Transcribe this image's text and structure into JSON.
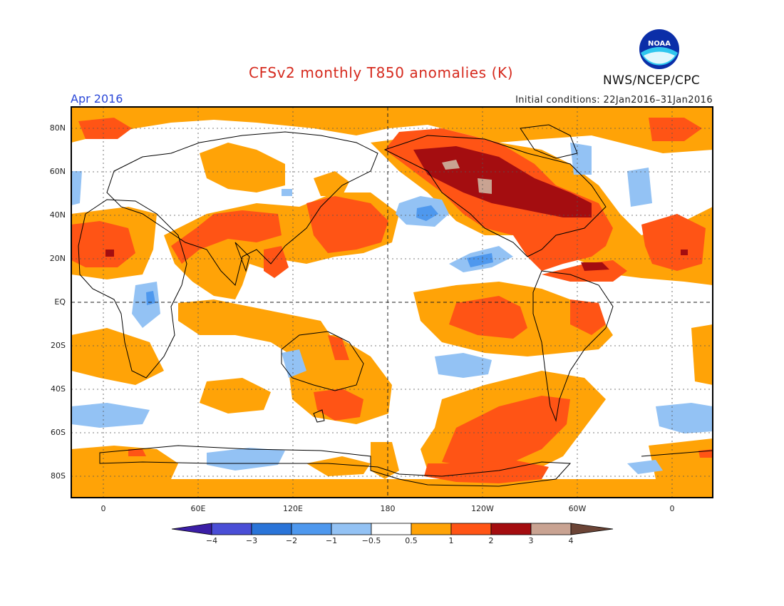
{
  "header": {
    "title": "CFSv2 monthly T850 anomalies (K)",
    "period": "Apr 2016",
    "initial_conditions": "Initial conditions: 22Jan2016–31Jan2016",
    "agency": "NWS/NCEP/CPC",
    "logo_text": "NOAA"
  },
  "map": {
    "lat_labels": [
      "80N",
      "60N",
      "40N",
      "20N",
      "EQ",
      "20S",
      "40S",
      "60S",
      "80S"
    ],
    "lon_labels": [
      "0",
      "60E",
      "120E",
      "180",
      "120W",
      "60W",
      "0"
    ]
  },
  "colorbar": {
    "labels": [
      "−4",
      "−3",
      "−2",
      "−1",
      "−0.5",
      "0.5",
      "1",
      "2",
      "3",
      "4"
    ],
    "colors": [
      "#3b1ea6",
      "#4a4ed6",
      "#2a74d8",
      "#4e98ee",
      "#93c2f4",
      "#ffffff",
      "#ffa307",
      "#ff5415",
      "#a40d10",
      "#c9a392",
      "#6b4436"
    ]
  }
}
